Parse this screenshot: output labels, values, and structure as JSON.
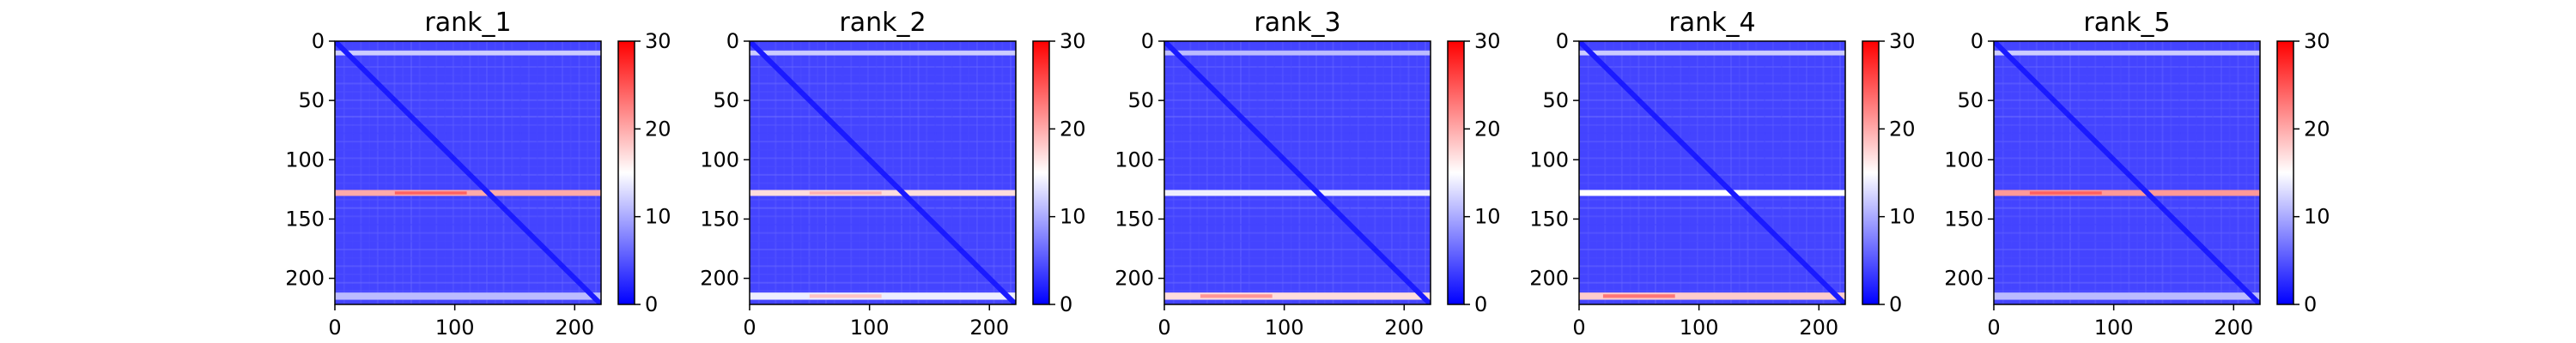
{
  "chart_data": [
    {
      "type": "heatmap",
      "title": "rank_1",
      "xlim": [
        0,
        222
      ],
      "ylim": [
        222,
        0
      ],
      "x_ticks": [
        0,
        100,
        200
      ],
      "y_ticks": [
        0,
        50,
        100,
        150,
        200
      ],
      "colorbar": {
        "range": [
          0,
          30
        ],
        "ticks": [
          0,
          10,
          20,
          30
        ],
        "colormap": [
          "#0000ff",
          "#ffffff",
          "#ff0000"
        ]
      },
      "base_value": 4,
      "diagonal_value": 1.5,
      "row_bands": [
        {
          "row": 10,
          "width": 4,
          "value": 12
        },
        {
          "row": 128,
          "width": 5,
          "value": 20,
          "peak_x": 80,
          "peak_value": 25
        },
        {
          "row": 215,
          "width": 6,
          "value": 11
        }
      ]
    },
    {
      "type": "heatmap",
      "title": "rank_2",
      "xlim": [
        0,
        222
      ],
      "ylim": [
        222,
        0
      ],
      "x_ticks": [
        0,
        100,
        200
      ],
      "y_ticks": [
        0,
        50,
        100,
        150,
        200
      ],
      "colorbar": {
        "range": [
          0,
          30
        ],
        "ticks": [
          0,
          10,
          20,
          30
        ],
        "colormap": [
          "#0000ff",
          "#ffffff",
          "#ff0000"
        ]
      },
      "base_value": 4,
      "diagonal_value": 1.5,
      "row_bands": [
        {
          "row": 10,
          "width": 4,
          "value": 12
        },
        {
          "row": 128,
          "width": 5,
          "value": 17,
          "peak_x": 80,
          "peak_value": 20
        },
        {
          "row": 215,
          "width": 6,
          "value": 14,
          "peak_x": 80,
          "peak_value": 19
        }
      ]
    },
    {
      "type": "heatmap",
      "title": "rank_3",
      "xlim": [
        0,
        222
      ],
      "ylim": [
        222,
        0
      ],
      "x_ticks": [
        0,
        100,
        200
      ],
      "y_ticks": [
        0,
        50,
        100,
        150,
        200
      ],
      "colorbar": {
        "range": [
          0,
          30
        ],
        "ticks": [
          0,
          10,
          20,
          30
        ],
        "colormap": [
          "#0000ff",
          "#ffffff",
          "#ff0000"
        ]
      },
      "base_value": 4,
      "diagonal_value": 1.5,
      "row_bands": [
        {
          "row": 10,
          "width": 4,
          "value": 11
        },
        {
          "row": 128,
          "width": 5,
          "value": 14
        },
        {
          "row": 215,
          "width": 6,
          "value": 17,
          "peak_x": 60,
          "peak_value": 22
        }
      ]
    },
    {
      "type": "heatmap",
      "title": "rank_4",
      "xlim": [
        0,
        222
      ],
      "ylim": [
        222,
        0
      ],
      "x_ticks": [
        0,
        100,
        200
      ],
      "y_ticks": [
        0,
        50,
        100,
        150,
        200
      ],
      "colorbar": {
        "range": [
          0,
          30
        ],
        "ticks": [
          0,
          10,
          20,
          30
        ],
        "colormap": [
          "#0000ff",
          "#ffffff",
          "#ff0000"
        ]
      },
      "base_value": 4,
      "diagonal_value": 1.5,
      "row_bands": [
        {
          "row": 10,
          "width": 4,
          "value": 12
        },
        {
          "row": 128,
          "width": 5,
          "value": 15
        },
        {
          "row": 215,
          "width": 6,
          "value": 18,
          "peak_x": 50,
          "peak_value": 24
        }
      ]
    },
    {
      "type": "heatmap",
      "title": "rank_5",
      "xlim": [
        0,
        222
      ],
      "ylim": [
        222,
        0
      ],
      "x_ticks": [
        0,
        100,
        200
      ],
      "y_ticks": [
        0,
        50,
        100,
        150,
        200
      ],
      "colorbar": {
        "range": [
          0,
          30
        ],
        "ticks": [
          0,
          10,
          20,
          30
        ],
        "colormap": [
          "#0000ff",
          "#ffffff",
          "#ff0000"
        ]
      },
      "base_value": 4,
      "diagonal_value": 1.5,
      "row_bands": [
        {
          "row": 10,
          "width": 4,
          "value": 12
        },
        {
          "row": 128,
          "width": 5,
          "value": 21,
          "peak_x": 60,
          "peak_value": 25
        },
        {
          "row": 215,
          "width": 6,
          "value": 11
        }
      ]
    }
  ]
}
